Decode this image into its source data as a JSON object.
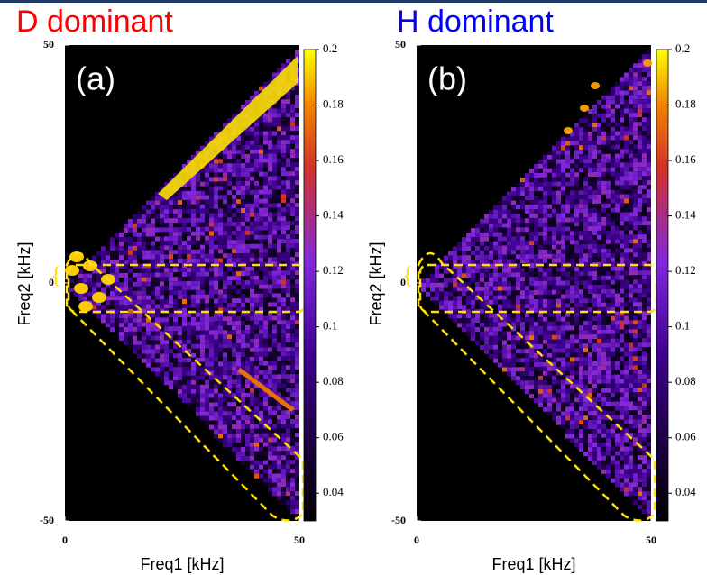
{
  "chart_data": [
    {
      "type": "heatmap",
      "title": "D dominant",
      "title_color": "#ff0000",
      "panel_label": "(a)",
      "xlabel": "Freq1 [kHz]",
      "ylabel": "Freq2 [kHz]",
      "xlim": [
        0,
        50
      ],
      "ylim": [
        -50,
        50
      ],
      "xticks": [
        0,
        50
      ],
      "yticks": [
        50,
        0,
        -50
      ],
      "clim": [
        0.03,
        0.2
      ],
      "cticks": [
        0.2,
        0.18,
        0.16,
        0.14,
        0.12,
        0.1,
        0.08,
        0.06,
        0.04
      ]
    },
    {
      "type": "heatmap",
      "title": "H dominant",
      "title_color": "#0000ff",
      "panel_label": "(b)",
      "xlabel": "Freq1 [kHz]",
      "ylabel": "Freq2 [kHz]",
      "xlim": [
        0,
        50
      ],
      "ylim": [
        -50,
        50
      ],
      "xticks": [
        0,
        50
      ],
      "yticks": [
        50,
        0,
        -50
      ],
      "clim": [
        0.03,
        0.2
      ],
      "cticks": [
        0.2,
        0.18,
        0.16,
        0.14,
        0.12,
        0.1,
        0.08,
        0.06,
        0.04
      ]
    }
  ]
}
